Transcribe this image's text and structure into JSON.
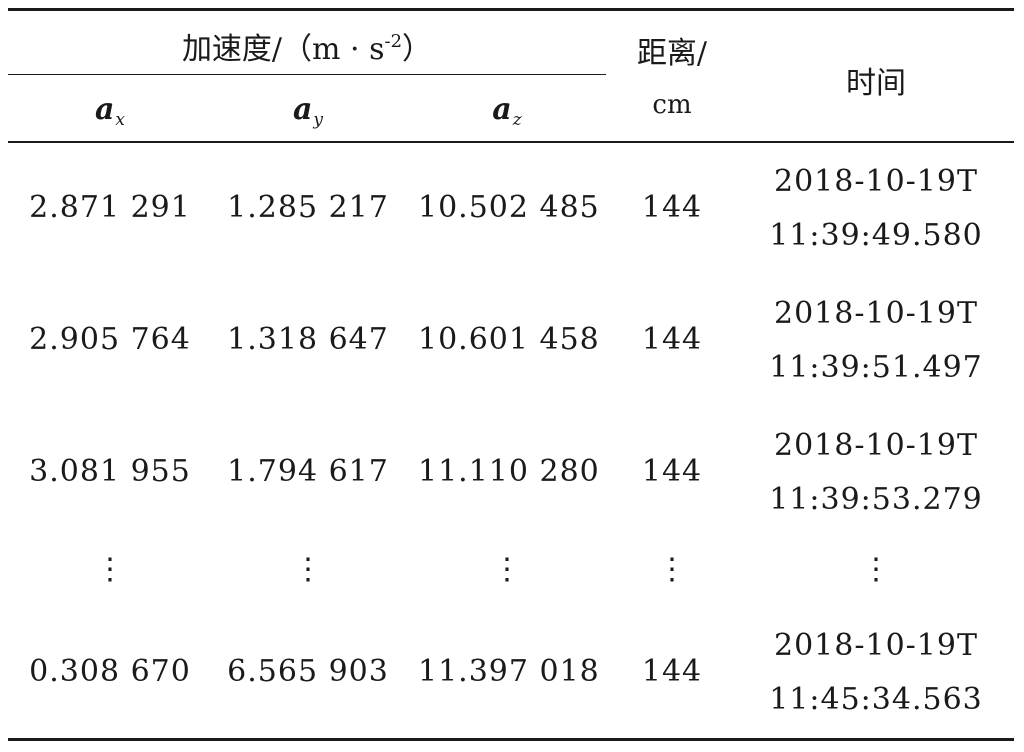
{
  "table": {
    "header": {
      "accel_group": "加速度/（m · s",
      "accel_exp": "-2",
      "accel_close": "）",
      "distance": "距离/",
      "distance_unit": "cm",
      "time": "时间",
      "ax_base": "a",
      "ax_sub": "x",
      "ay_base": "a",
      "ay_sub": "y",
      "az_base": "a",
      "az_sub": "z"
    },
    "rows": [
      {
        "ax": "2.871 291",
        "ay": "1.285 217",
        "az": "10.502 485",
        "dist": "144",
        "date": "2018-10-19T",
        "time": "11:39:49.580"
      },
      {
        "ax": "2.905 764",
        "ay": "1.318 647",
        "az": "10.601 458",
        "dist": "144",
        "date": "2018-10-19T",
        "time": "11:39:51.497"
      },
      {
        "ax": "3.081 955",
        "ay": "1.794 617",
        "az": "11.110 280",
        "dist": "144",
        "date": "2018-10-19T",
        "time": "11:39:53.279"
      },
      {
        "ax": "0.308 670",
        "ay": "6.565 903",
        "az": "11.397 018",
        "dist": "144",
        "date": "2018-10-19T",
        "time": "11:45:34.563"
      }
    ],
    "ellipsis": "⋮"
  }
}
